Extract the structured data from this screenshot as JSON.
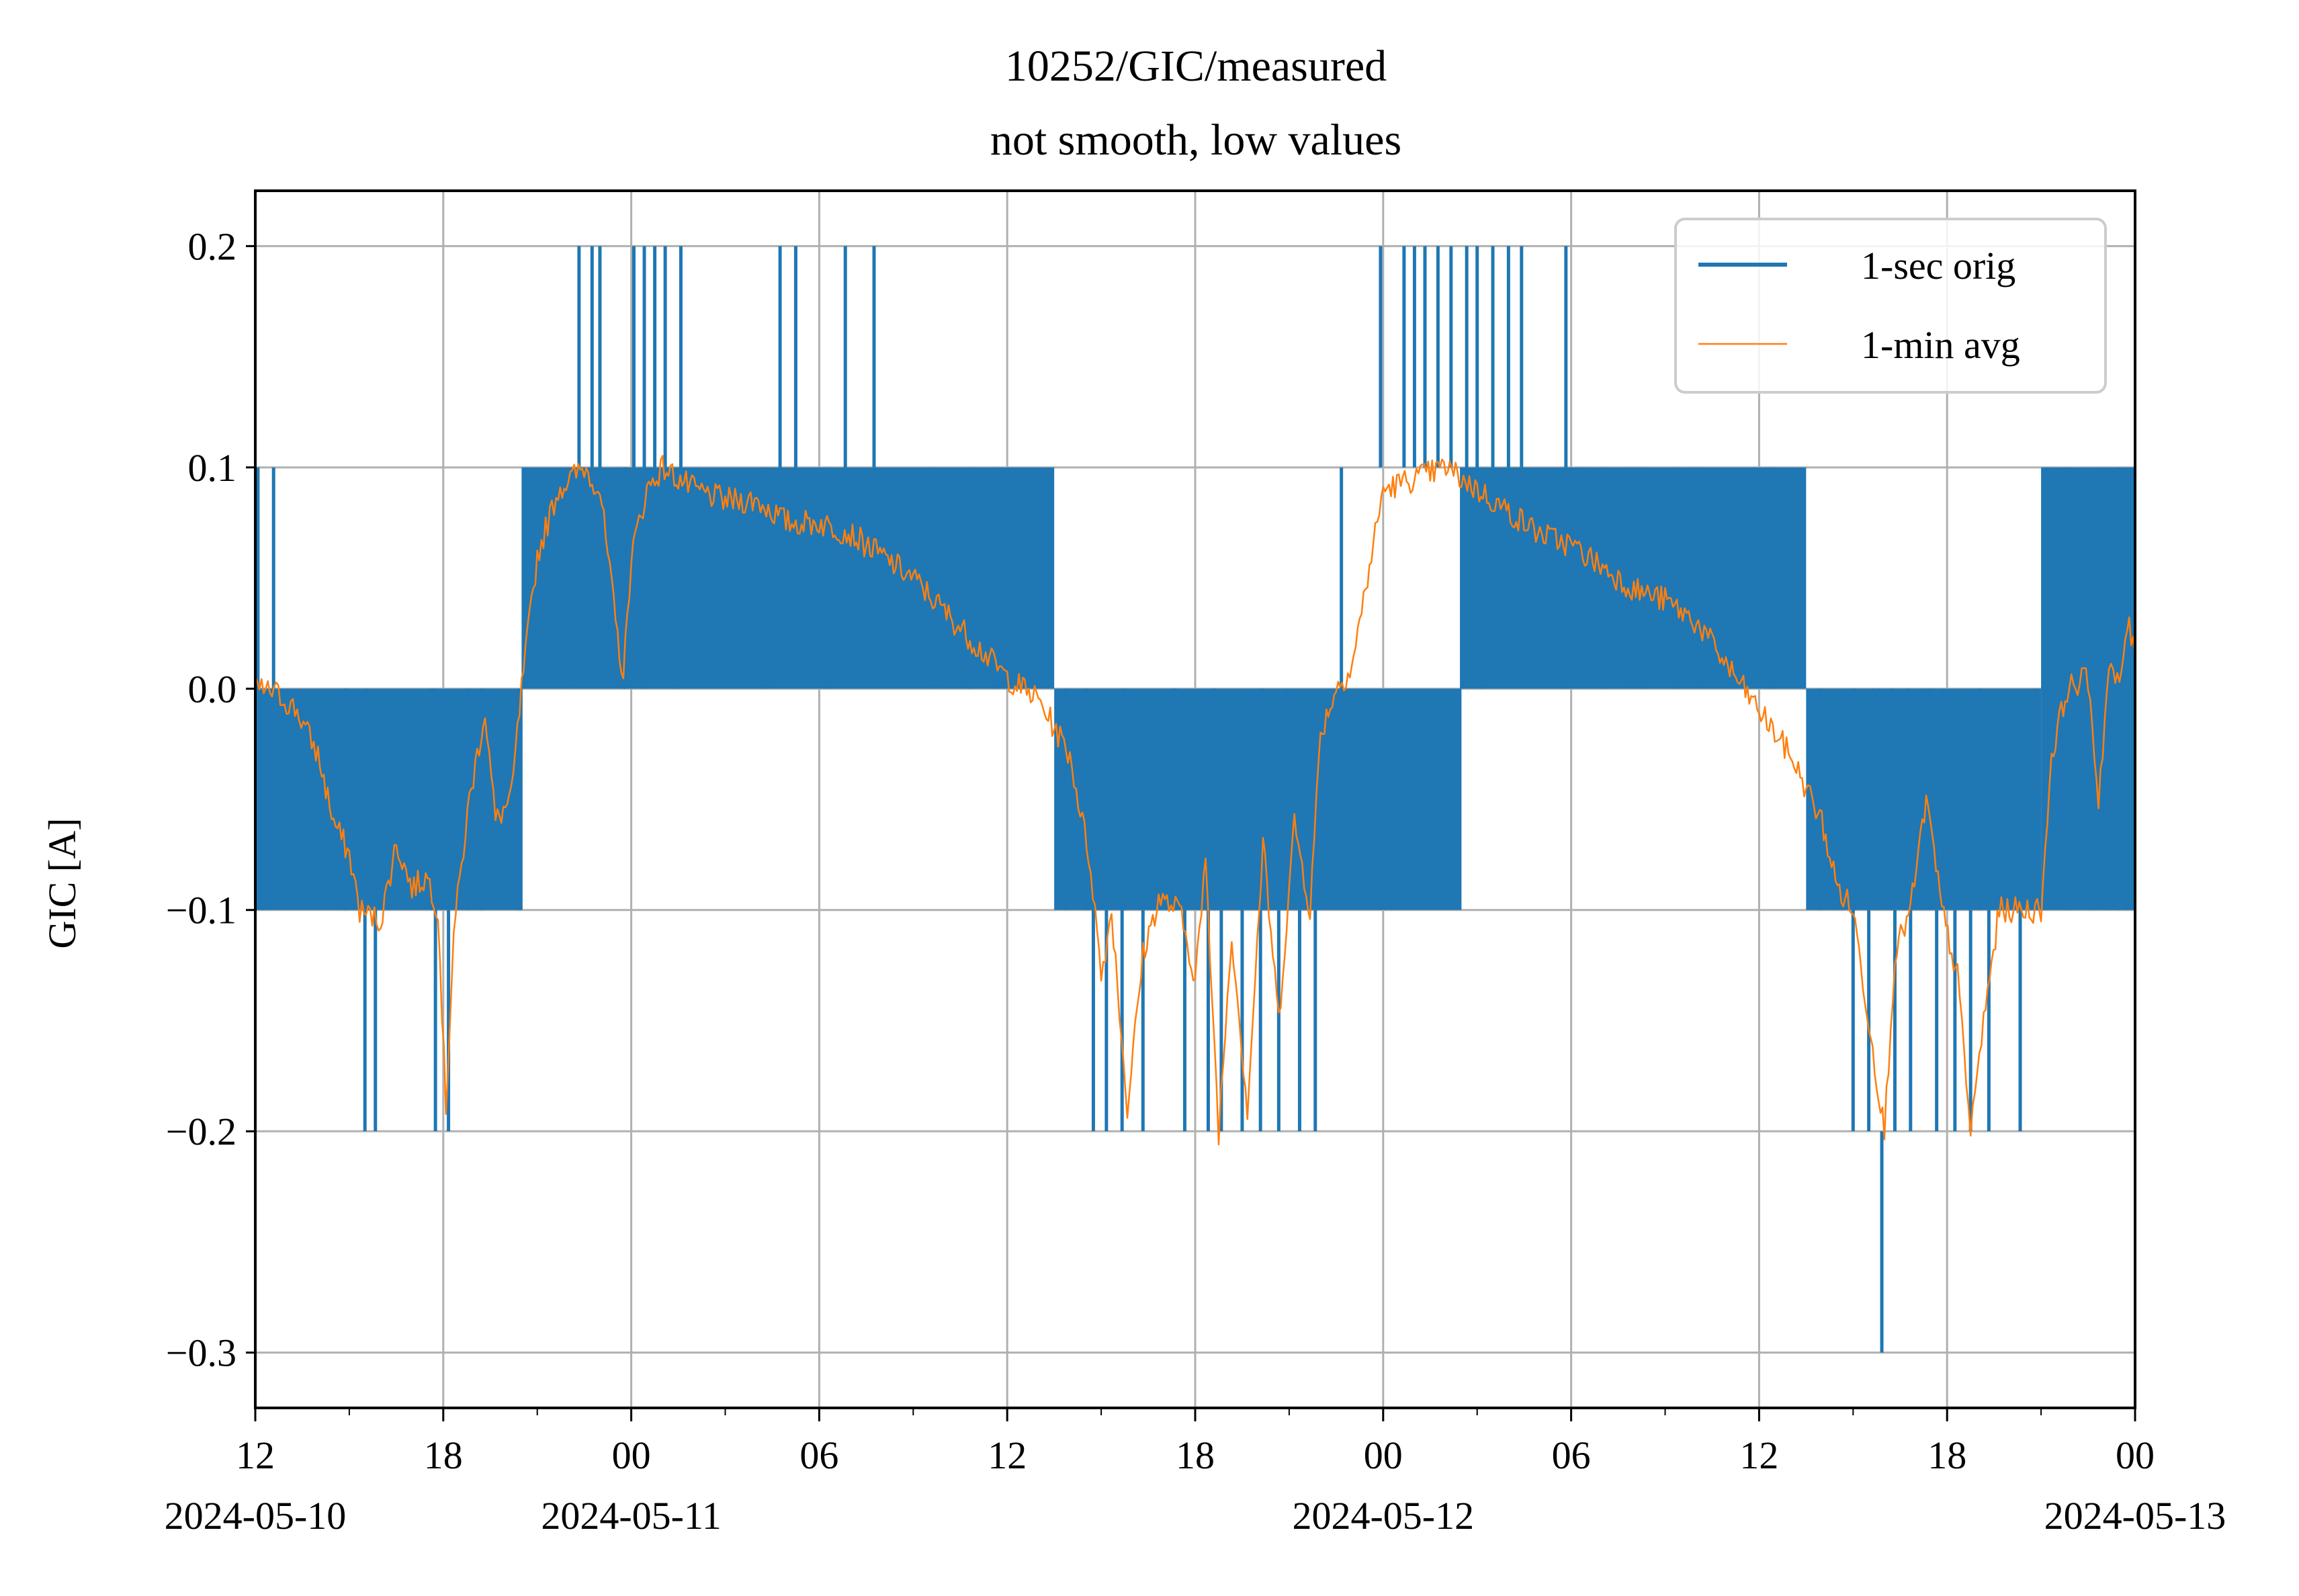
{
  "chart_data": {
    "type": "line",
    "title": "10252/GIC/measured",
    "subtitle": "not smooth, low values",
    "xlabel": "",
    "ylabel": "GIC [A]",
    "xlim": [
      "2024-05-10 12:00",
      "2024-05-13 00:00"
    ],
    "ylim": [
      -0.325,
      0.225
    ],
    "grid": true,
    "legend_position": "top-right",
    "x_ticks": [
      {
        "t": "2024-05-10 12:00",
        "label": "12",
        "date": "2024-05-10"
      },
      {
        "t": "2024-05-10 18:00",
        "label": "18",
        "date": ""
      },
      {
        "t": "2024-05-11 00:00",
        "label": "00",
        "date": "2024-05-11"
      },
      {
        "t": "2024-05-11 06:00",
        "label": "06",
        "date": ""
      },
      {
        "t": "2024-05-11 12:00",
        "label": "12",
        "date": ""
      },
      {
        "t": "2024-05-11 18:00",
        "label": "18",
        "date": ""
      },
      {
        "t": "2024-05-12 00:00",
        "label": "00",
        "date": "2024-05-12"
      },
      {
        "t": "2024-05-12 06:00",
        "label": "06",
        "date": ""
      },
      {
        "t": "2024-05-12 12:00",
        "label": "12",
        "date": ""
      },
      {
        "t": "2024-05-12 18:00",
        "label": "18",
        "date": ""
      },
      {
        "t": "2024-05-13 00:00",
        "label": "00",
        "date": "2024-05-13"
      }
    ],
    "y_ticks": [
      {
        "value": 0.2,
        "label": "0.2"
      },
      {
        "value": 0.1,
        "label": "0.1"
      },
      {
        "value": 0.0,
        "label": "0.0"
      },
      {
        "value": -0.1,
        "label": "−0.1"
      },
      {
        "value": -0.2,
        "label": "−0.2"
      },
      {
        "value": -0.3,
        "label": "−0.3"
      }
    ],
    "series": [
      {
        "name": "1-sec orig",
        "color": "#1f77b4",
        "style": "quantized 1-sec samples oscillating between adjacent 0.1 A levels",
        "band_segments": [
          {
            "start": "2024-05-10 12:00",
            "end": "2024-05-10 20:30",
            "low": -0.1,
            "high": 0.0
          },
          {
            "start": "2024-05-10 20:30",
            "end": "2024-05-11 13:30",
            "low": 0.0,
            "high": 0.1
          },
          {
            "start": "2024-05-11 13:30",
            "end": "2024-05-12 02:30",
            "low": -0.1,
            "high": 0.0
          },
          {
            "start": "2024-05-12 02:30",
            "end": "2024-05-12 13:30",
            "low": 0.0,
            "high": 0.1
          },
          {
            "start": "2024-05-12 13:30",
            "end": "2024-05-12 21:00",
            "low": -0.1,
            "high": 0.0
          },
          {
            "start": "2024-05-12 21:00",
            "end": "2024-05-13 00:00",
            "low": -0.1,
            "high": 0.1
          }
        ],
        "spikes": [
          {
            "t": "2024-05-10 12:05",
            "y": 0.1
          },
          {
            "t": "2024-05-10 12:35",
            "y": 0.1
          },
          {
            "t": "2024-05-10 15:30",
            "y": -0.2
          },
          {
            "t": "2024-05-10 15:50",
            "y": -0.2
          },
          {
            "t": "2024-05-10 17:45",
            "y": -0.2
          },
          {
            "t": "2024-05-10 18:10",
            "y": -0.2
          },
          {
            "t": "2024-05-10 22:20",
            "y": 0.2
          },
          {
            "t": "2024-05-10 22:45",
            "y": 0.2
          },
          {
            "t": "2024-05-10 23:00",
            "y": 0.2
          },
          {
            "t": "2024-05-11 00:05",
            "y": 0.2
          },
          {
            "t": "2024-05-11 00:25",
            "y": 0.2
          },
          {
            "t": "2024-05-11 00:45",
            "y": 0.2
          },
          {
            "t": "2024-05-11 01:05",
            "y": 0.2
          },
          {
            "t": "2024-05-11 01:35",
            "y": 0.2
          },
          {
            "t": "2024-05-11 04:45",
            "y": 0.2
          },
          {
            "t": "2024-05-11 05:15",
            "y": 0.2
          },
          {
            "t": "2024-05-11 06:50",
            "y": 0.2
          },
          {
            "t": "2024-05-11 07:45",
            "y": 0.2
          },
          {
            "t": "2024-05-11 14:45",
            "y": -0.2
          },
          {
            "t": "2024-05-11 15:10",
            "y": -0.2
          },
          {
            "t": "2024-05-11 15:40",
            "y": -0.2
          },
          {
            "t": "2024-05-11 16:20",
            "y": -0.2
          },
          {
            "t": "2024-05-11 17:40",
            "y": -0.2
          },
          {
            "t": "2024-05-11 18:25",
            "y": -0.2
          },
          {
            "t": "2024-05-11 18:50",
            "y": -0.2
          },
          {
            "t": "2024-05-11 19:30",
            "y": -0.2
          },
          {
            "t": "2024-05-11 20:05",
            "y": -0.2
          },
          {
            "t": "2024-05-11 20:40",
            "y": -0.2
          },
          {
            "t": "2024-05-11 21:20",
            "y": -0.2
          },
          {
            "t": "2024-05-11 21:50",
            "y": -0.2
          },
          {
            "t": "2024-05-11 22:40",
            "y": 0.1
          },
          {
            "t": "2024-05-11 23:55",
            "y": 0.2
          },
          {
            "t": "2024-05-12 00:40",
            "y": 0.2
          },
          {
            "t": "2024-05-12 01:00",
            "y": 0.2
          },
          {
            "t": "2024-05-12 01:20",
            "y": 0.2
          },
          {
            "t": "2024-05-12 01:45",
            "y": 0.2
          },
          {
            "t": "2024-05-12 02:10",
            "y": 0.2
          },
          {
            "t": "2024-05-12 02:40",
            "y": 0.2
          },
          {
            "t": "2024-05-12 03:00",
            "y": 0.2
          },
          {
            "t": "2024-05-12 03:30",
            "y": 0.2
          },
          {
            "t": "2024-05-12 04:00",
            "y": 0.2
          },
          {
            "t": "2024-05-12 04:25",
            "y": 0.2
          },
          {
            "t": "2024-05-12 05:50",
            "y": 0.2
          },
          {
            "t": "2024-05-12 15:00",
            "y": -0.2
          },
          {
            "t": "2024-05-12 15:30",
            "y": -0.2
          },
          {
            "t": "2024-05-12 15:55",
            "y": -0.3
          },
          {
            "t": "2024-05-12 16:20",
            "y": -0.2
          },
          {
            "t": "2024-05-12 16:50",
            "y": -0.2
          },
          {
            "t": "2024-05-12 17:40",
            "y": -0.2
          },
          {
            "t": "2024-05-12 18:15",
            "y": -0.2
          },
          {
            "t": "2024-05-12 18:45",
            "y": -0.2
          },
          {
            "t": "2024-05-12 19:20",
            "y": -0.2
          },
          {
            "t": "2024-05-12 20:20",
            "y": -0.2
          },
          {
            "t": "2024-05-12 21:20",
            "y": 0.1
          },
          {
            "t": "2024-05-12 21:50",
            "y": 0.1
          },
          {
            "t": "2024-05-12 22:20",
            "y": 0.1
          },
          {
            "t": "2024-05-12 22:50",
            "y": 0.1
          },
          {
            "t": "2024-05-12 23:30",
            "y": 0.1
          },
          {
            "t": "2024-05-12 23:55",
            "y": 0.1
          }
        ]
      },
      {
        "name": "1-min avg",
        "color": "#ff7f0e",
        "points": [
          {
            "t": "2024-05-10 12:00",
            "y": 0.0
          },
          {
            "t": "2024-05-10 12:40",
            "y": -0.002
          },
          {
            "t": "2024-05-10 13:20",
            "y": -0.01
          },
          {
            "t": "2024-05-10 14:00",
            "y": -0.03
          },
          {
            "t": "2024-05-10 14:30",
            "y": -0.06
          },
          {
            "t": "2024-05-10 15:00",
            "y": -0.075
          },
          {
            "t": "2024-05-10 15:20",
            "y": -0.1
          },
          {
            "t": "2024-05-10 16:00",
            "y": -0.105
          },
          {
            "t": "2024-05-10 16:30",
            "y": -0.07
          },
          {
            "t": "2024-05-10 17:00",
            "y": -0.09
          },
          {
            "t": "2024-05-10 17:30",
            "y": -0.085
          },
          {
            "t": "2024-05-10 17:50",
            "y": -0.1
          },
          {
            "t": "2024-05-10 18:05",
            "y": -0.19
          },
          {
            "t": "2024-05-10 18:20",
            "y": -0.11
          },
          {
            "t": "2024-05-10 18:50",
            "y": -0.05
          },
          {
            "t": "2024-05-10 19:20",
            "y": -0.01
          },
          {
            "t": "2024-05-10 19:40",
            "y": -0.06
          },
          {
            "t": "2024-05-10 20:10",
            "y": -0.05
          },
          {
            "t": "2024-05-10 20:30",
            "y": 0.0
          },
          {
            "t": "2024-05-10 21:00",
            "y": 0.06
          },
          {
            "t": "2024-05-10 21:40",
            "y": 0.09
          },
          {
            "t": "2024-05-10 22:30",
            "y": 0.1
          },
          {
            "t": "2024-05-10 23:00",
            "y": 0.09
          },
          {
            "t": "2024-05-10 23:30",
            "y": 0.03
          },
          {
            "t": "2024-05-10 23:45",
            "y": 0.005
          },
          {
            "t": "2024-05-11 00:00",
            "y": 0.06
          },
          {
            "t": "2024-05-11 00:30",
            "y": 0.09
          },
          {
            "t": "2024-05-11 01:00",
            "y": 0.1
          },
          {
            "t": "2024-05-11 02:00",
            "y": 0.09
          },
          {
            "t": "2024-05-11 03:00",
            "y": 0.085
          },
          {
            "t": "2024-05-11 04:00",
            "y": 0.085
          },
          {
            "t": "2024-05-11 05:00",
            "y": 0.075
          },
          {
            "t": "2024-05-11 06:00",
            "y": 0.075
          },
          {
            "t": "2024-05-11 07:00",
            "y": 0.07
          },
          {
            "t": "2024-05-11 08:00",
            "y": 0.06
          },
          {
            "t": "2024-05-11 09:00",
            "y": 0.05
          },
          {
            "t": "2024-05-11 10:00",
            "y": 0.035
          },
          {
            "t": "2024-05-11 11:00",
            "y": 0.02
          },
          {
            "t": "2024-05-11 12:00",
            "y": 0.005
          },
          {
            "t": "2024-05-11 13:00",
            "y": -0.005
          },
          {
            "t": "2024-05-11 14:00",
            "y": -0.03
          },
          {
            "t": "2024-05-11 14:40",
            "y": -0.08
          },
          {
            "t": "2024-05-11 15:00",
            "y": -0.13
          },
          {
            "t": "2024-05-11 15:20",
            "y": -0.1
          },
          {
            "t": "2024-05-11 15:50",
            "y": -0.19
          },
          {
            "t": "2024-05-11 16:20",
            "y": -0.12
          },
          {
            "t": "2024-05-11 16:50",
            "y": -0.095
          },
          {
            "t": "2024-05-11 17:30",
            "y": -0.1
          },
          {
            "t": "2024-05-11 18:00",
            "y": -0.13
          },
          {
            "t": "2024-05-11 18:20",
            "y": -0.08
          },
          {
            "t": "2024-05-11 18:45",
            "y": -0.2
          },
          {
            "t": "2024-05-11 19:10",
            "y": -0.11
          },
          {
            "t": "2024-05-11 19:40",
            "y": -0.19
          },
          {
            "t": "2024-05-11 20:10",
            "y": -0.07
          },
          {
            "t": "2024-05-11 20:40",
            "y": -0.15
          },
          {
            "t": "2024-05-11 21:10",
            "y": -0.06
          },
          {
            "t": "2024-05-11 21:40",
            "y": -0.1
          },
          {
            "t": "2024-05-11 22:00",
            "y": -0.02
          },
          {
            "t": "2024-05-11 22:30",
            "y": 0.0
          },
          {
            "t": "2024-05-11 23:00",
            "y": 0.01
          },
          {
            "t": "2024-05-11 23:30",
            "y": 0.05
          },
          {
            "t": "2024-05-12 00:00",
            "y": 0.09
          },
          {
            "t": "2024-05-12 01:00",
            "y": 0.095
          },
          {
            "t": "2024-05-12 02:00",
            "y": 0.1
          },
          {
            "t": "2024-05-12 03:00",
            "y": 0.09
          },
          {
            "t": "2024-05-12 04:00",
            "y": 0.08
          },
          {
            "t": "2024-05-12 05:00",
            "y": 0.07
          },
          {
            "t": "2024-05-12 06:00",
            "y": 0.065
          },
          {
            "t": "2024-05-12 07:00",
            "y": 0.055
          },
          {
            "t": "2024-05-12 08:00",
            "y": 0.045
          },
          {
            "t": "2024-05-12 09:00",
            "y": 0.04
          },
          {
            "t": "2024-05-12 10:00",
            "y": 0.03
          },
          {
            "t": "2024-05-12 11:00",
            "y": 0.01
          },
          {
            "t": "2024-05-12 12:00",
            "y": -0.01
          },
          {
            "t": "2024-05-12 13:00",
            "y": -0.03
          },
          {
            "t": "2024-05-12 14:00",
            "y": -0.06
          },
          {
            "t": "2024-05-12 14:30",
            "y": -0.09
          },
          {
            "t": "2024-05-12 15:00",
            "y": -0.1
          },
          {
            "t": "2024-05-12 15:30",
            "y": -0.15
          },
          {
            "t": "2024-05-12 16:00",
            "y": -0.2
          },
          {
            "t": "2024-05-12 16:20",
            "y": -0.12
          },
          {
            "t": "2024-05-12 16:50",
            "y": -0.1
          },
          {
            "t": "2024-05-12 17:20",
            "y": -0.05
          },
          {
            "t": "2024-05-12 17:50",
            "y": -0.1
          },
          {
            "t": "2024-05-12 18:20",
            "y": -0.13
          },
          {
            "t": "2024-05-12 18:45",
            "y": -0.2
          },
          {
            "t": "2024-05-12 19:10",
            "y": -0.15
          },
          {
            "t": "2024-05-12 19:40",
            "y": -0.1
          },
          {
            "t": "2024-05-12 20:30",
            "y": -0.1
          },
          {
            "t": "2024-05-12 21:00",
            "y": -0.1
          },
          {
            "t": "2024-05-12 21:20",
            "y": -0.03
          },
          {
            "t": "2024-05-12 21:50",
            "y": 0.0
          },
          {
            "t": "2024-05-12 22:30",
            "y": 0.005
          },
          {
            "t": "2024-05-12 22:50",
            "y": -0.05
          },
          {
            "t": "2024-05-12 23:10",
            "y": 0.01
          },
          {
            "t": "2024-05-12 23:30",
            "y": 0.0
          },
          {
            "t": "2024-05-12 23:45",
            "y": 0.03
          },
          {
            "t": "2024-05-13 00:00",
            "y": 0.015
          }
        ]
      }
    ]
  }
}
